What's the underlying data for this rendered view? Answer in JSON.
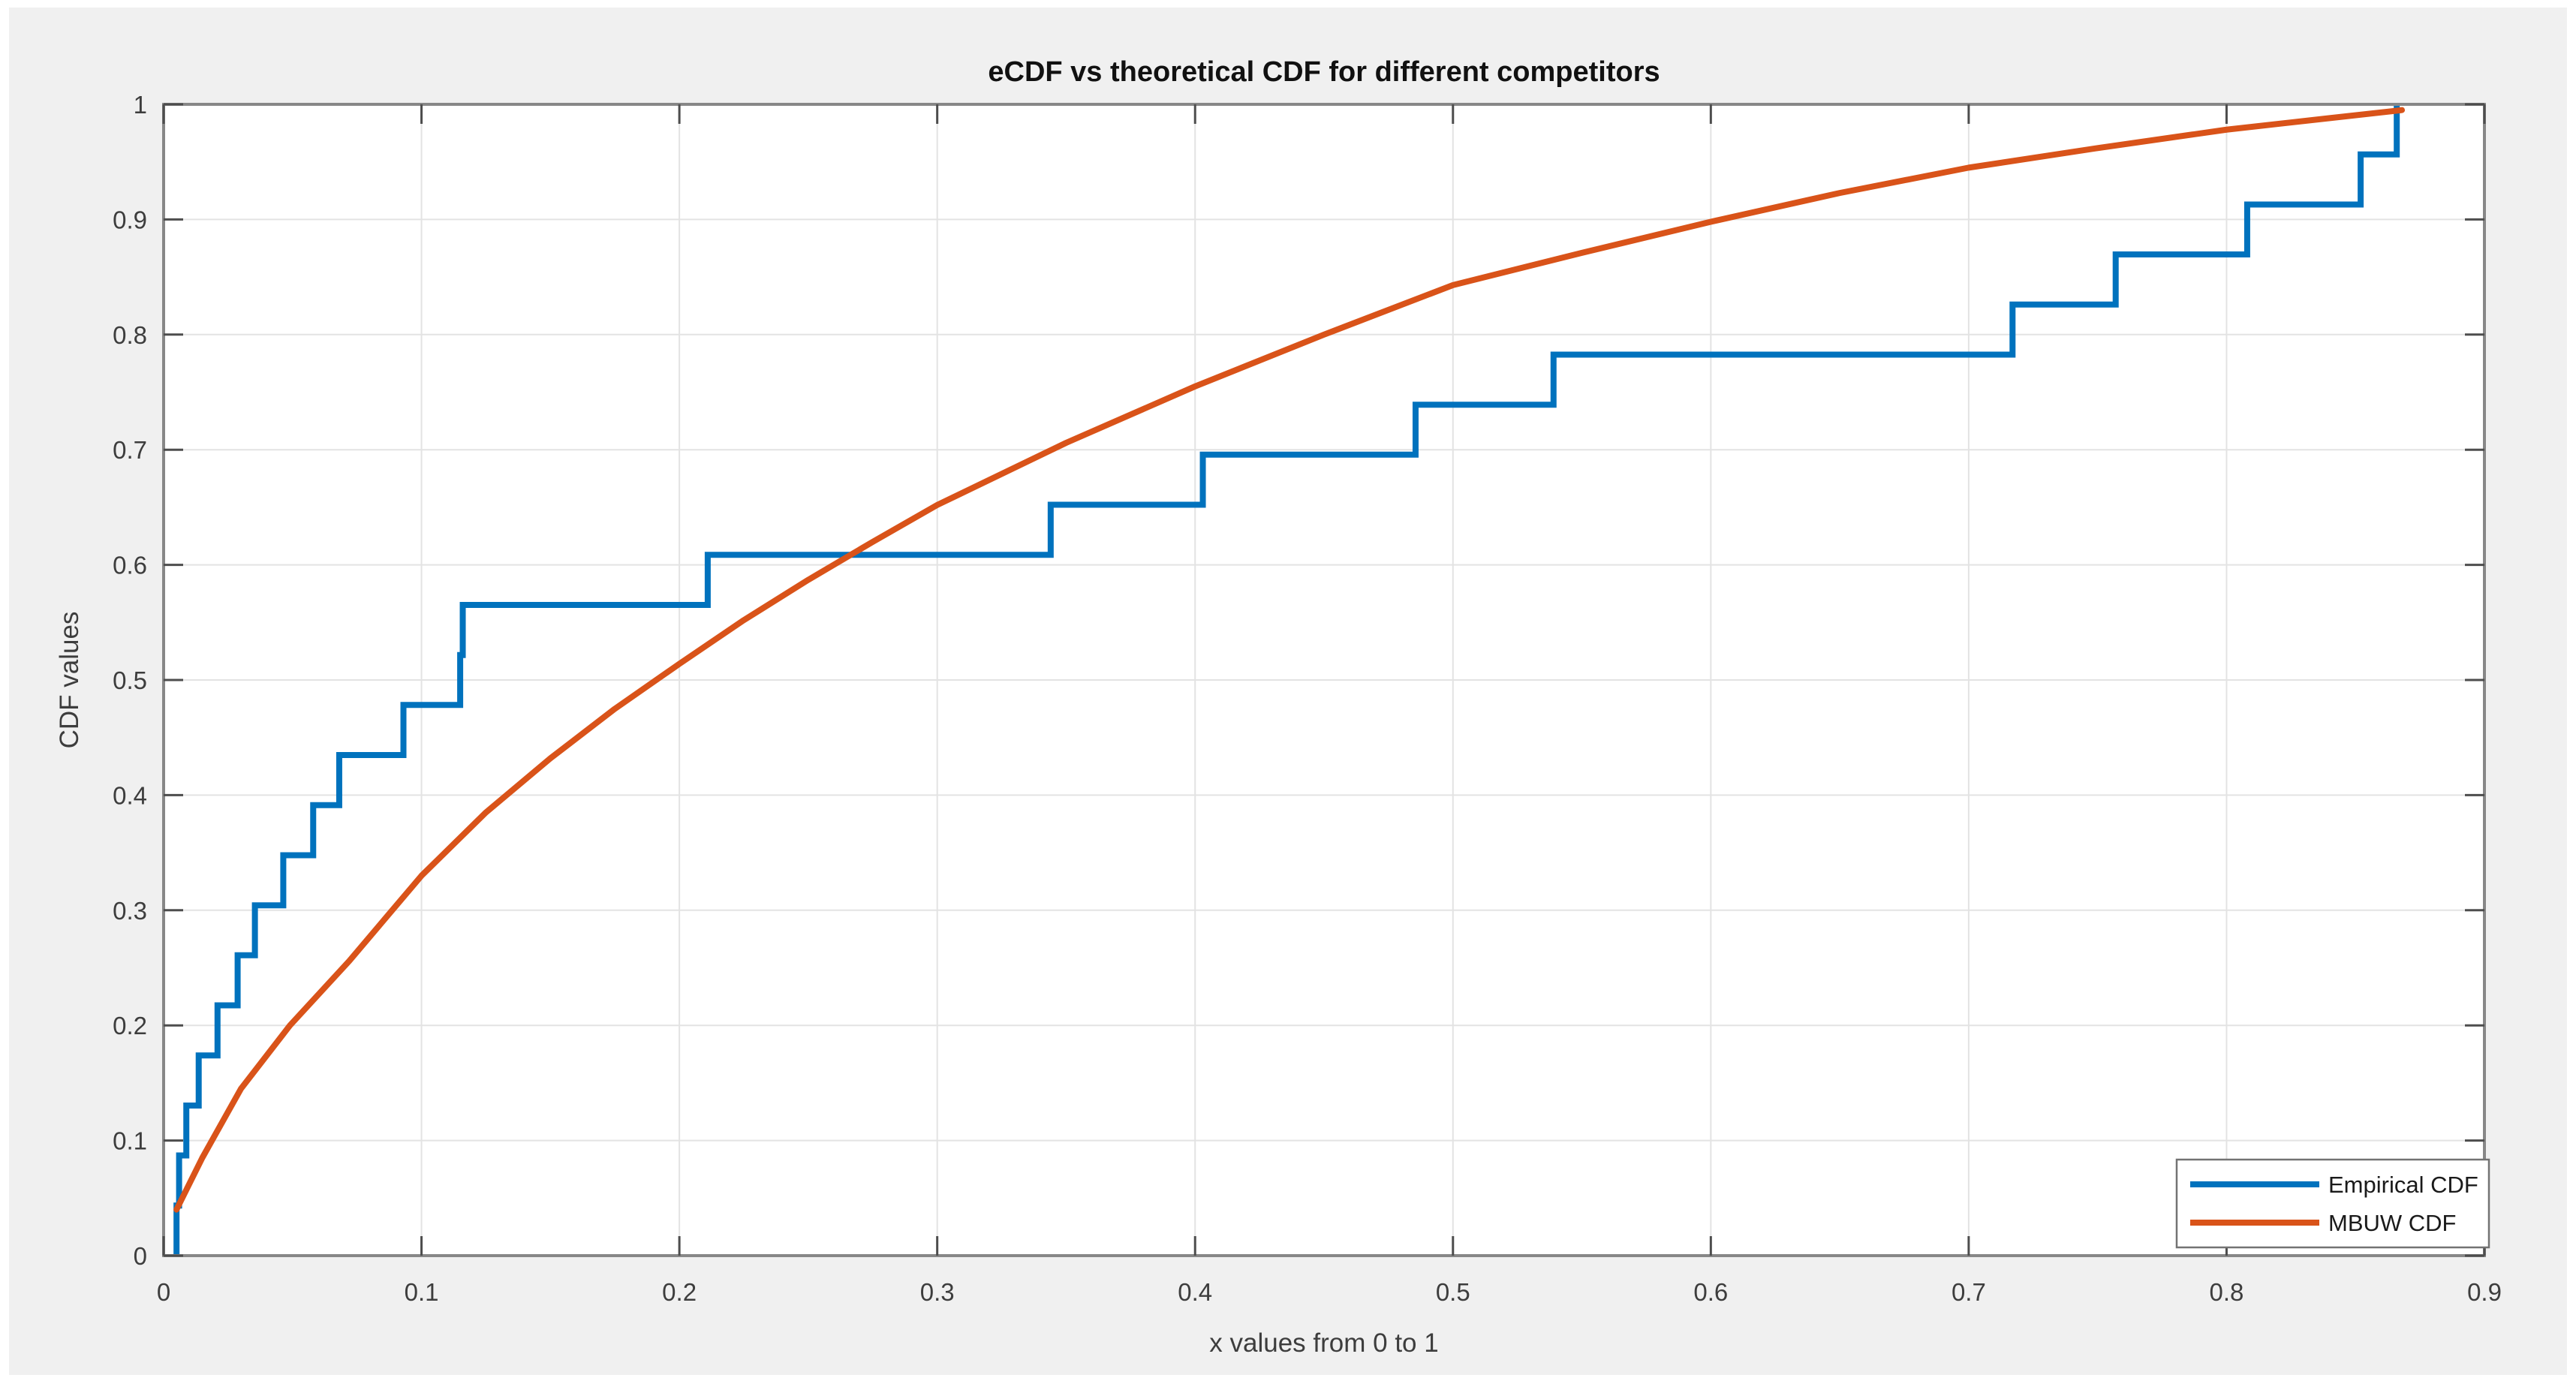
{
  "figure": {
    "background_color": "#f0f0f0",
    "plot_background_color": "#ffffff"
  },
  "chart_data": {
    "type": "line",
    "title": "eCDF vs theoretical CDF for different competitors",
    "xlabel": "x values from 0 to 1",
    "ylabel": "CDF values",
    "xlim": [
      0,
      0.9
    ],
    "ylim": [
      0,
      1
    ],
    "xtick_values": [
      0,
      0.1,
      0.2,
      0.3,
      0.4,
      0.5,
      0.6,
      0.7,
      0.8,
      0.9
    ],
    "xtick_labels": [
      "0",
      "0.1",
      "0.2",
      "0.3",
      "0.4",
      "0.5",
      "0.6",
      "0.7",
      "0.8",
      "0.9"
    ],
    "ytick_values": [
      0,
      0.1,
      0.2,
      0.3,
      0.4,
      0.5,
      0.6,
      0.7,
      0.8,
      0.9,
      1
    ],
    "ytick_labels": [
      "0",
      "0.1",
      "0.2",
      "0.3",
      "0.4",
      "0.5",
      "0.6",
      "0.7",
      "0.8",
      "0.9",
      "1"
    ],
    "grid": true,
    "legend_position": "southeast",
    "series": [
      {
        "name": "Empirical CDF",
        "style": "step",
        "color": "#0072BD",
        "points": [
          [
            0.005,
            0.0435
          ],
          [
            0.006,
            0.087
          ],
          [
            0.0088,
            0.1304
          ],
          [
            0.0136,
            0.1739
          ],
          [
            0.0209,
            0.2174
          ],
          [
            0.0287,
            0.2609
          ],
          [
            0.0354,
            0.3043
          ],
          [
            0.0464,
            0.3478
          ],
          [
            0.058,
            0.3913
          ],
          [
            0.0681,
            0.4348
          ],
          [
            0.093,
            0.4783
          ],
          [
            0.115,
            0.5217
          ],
          [
            0.116,
            0.5652
          ],
          [
            0.211,
            0.6087
          ],
          [
            0.344,
            0.6522
          ],
          [
            0.403,
            0.6957
          ],
          [
            0.4855,
            0.7391
          ],
          [
            0.539,
            0.7826
          ],
          [
            0.717,
            0.8261
          ],
          [
            0.757,
            0.8696
          ],
          [
            0.808,
            0.913
          ],
          [
            0.852,
            0.9565
          ],
          [
            0.866,
            1.0
          ]
        ]
      },
      {
        "name": "MBUW CDF",
        "style": "smooth",
        "color": "#D95319",
        "points": [
          [
            0.005,
            0.04
          ],
          [
            0.015,
            0.085
          ],
          [
            0.03,
            0.145
          ],
          [
            0.049,
            0.2
          ],
          [
            0.072,
            0.256
          ],
          [
            0.1,
            0.33
          ],
          [
            0.125,
            0.385
          ],
          [
            0.15,
            0.432
          ],
          [
            0.175,
            0.475
          ],
          [
            0.2,
            0.514
          ],
          [
            0.225,
            0.552
          ],
          [
            0.25,
            0.587
          ],
          [
            0.275,
            0.62
          ],
          [
            0.3,
            0.652
          ],
          [
            0.35,
            0.706
          ],
          [
            0.4,
            0.755
          ],
          [
            0.45,
            0.8
          ],
          [
            0.5,
            0.843
          ],
          [
            0.55,
            0.871
          ],
          [
            0.6,
            0.898
          ],
          [
            0.65,
            0.923
          ],
          [
            0.7,
            0.945
          ],
          [
            0.75,
            0.962
          ],
          [
            0.8,
            0.978
          ],
          [
            0.84,
            0.988
          ],
          [
            0.868,
            0.995
          ]
        ]
      }
    ],
    "colors": {
      "empirical_line": "#0072BD",
      "mbuw_line": "#D95319",
      "axis_box": "#878787",
      "tick_mark": "#4d4d4d",
      "grid_line": "#e3e3e3",
      "legend_border": "#737373",
      "legend_background": "#ffffff"
    }
  },
  "legend": {
    "items": [
      {
        "label": "Empirical CDF"
      },
      {
        "label": "MBUW CDF"
      }
    ]
  }
}
